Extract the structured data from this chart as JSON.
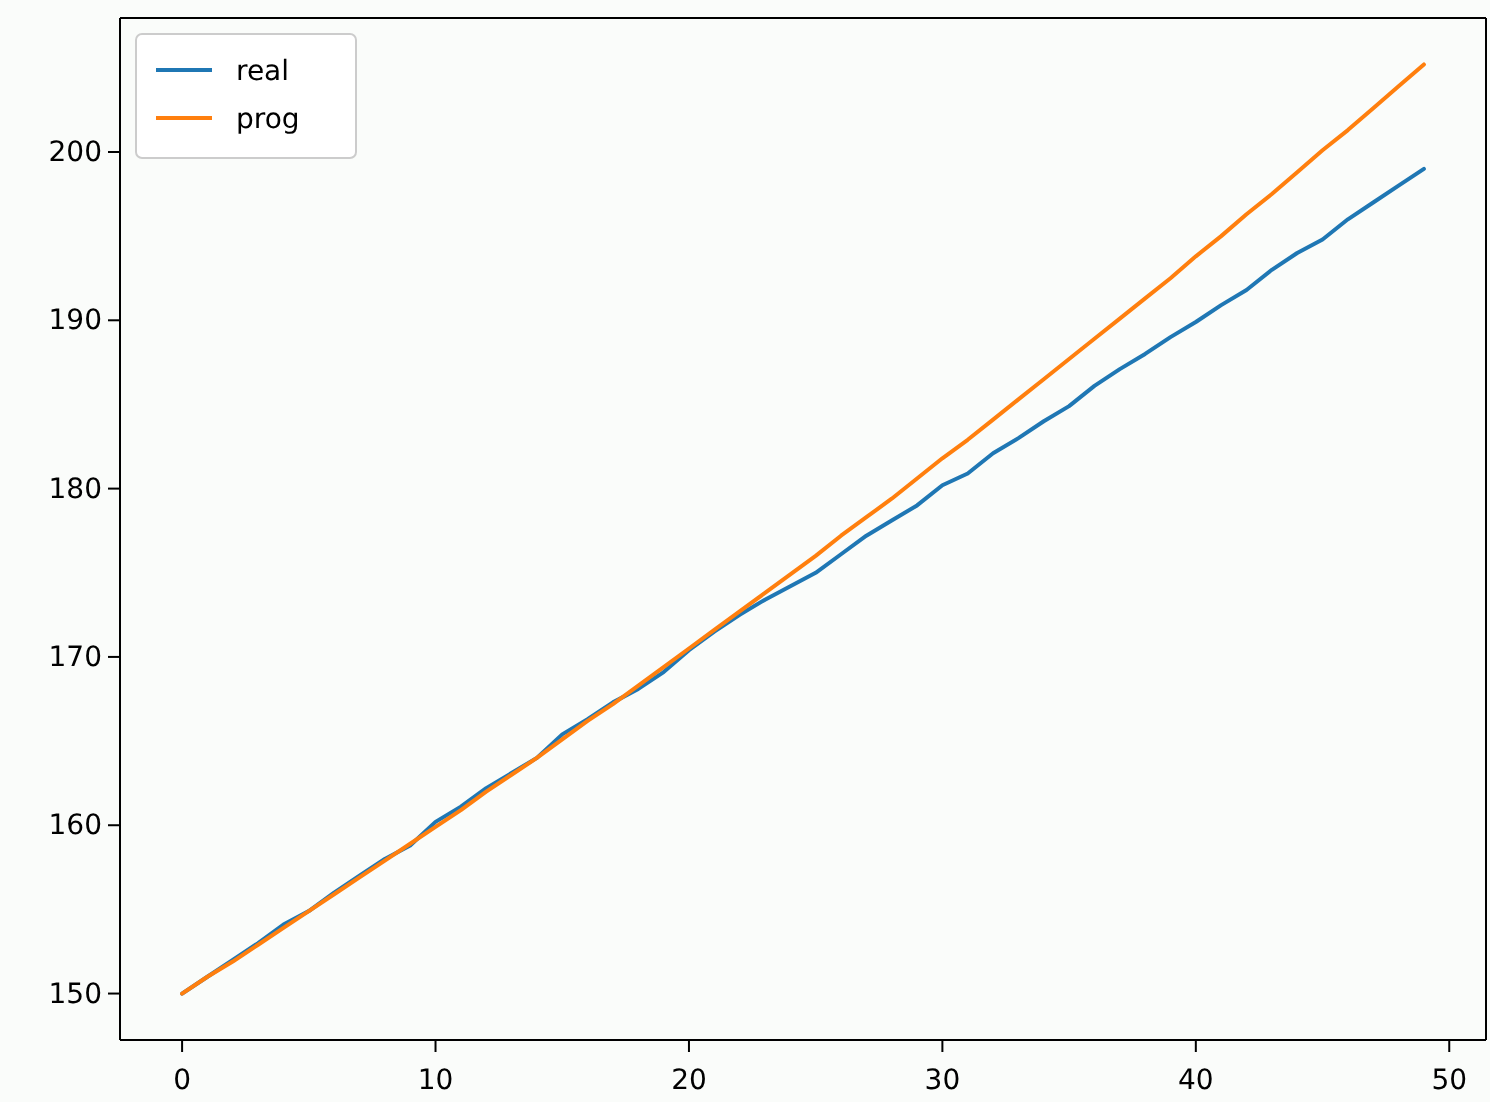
{
  "chart_data": {
    "type": "line",
    "x": [
      0,
      1,
      2,
      3,
      4,
      5,
      6,
      7,
      8,
      9,
      10,
      11,
      12,
      13,
      14,
      15,
      16,
      17,
      18,
      19,
      20,
      21,
      22,
      23,
      24,
      25,
      26,
      27,
      28,
      29,
      30,
      31,
      32,
      33,
      34,
      35,
      36,
      37,
      38,
      39,
      40,
      41,
      42,
      43,
      44,
      45,
      46,
      47,
      48,
      49
    ],
    "series": [
      {
        "name": "real",
        "color": "#1f77b4",
        "values": [
          150,
          151,
          152,
          153,
          154.1,
          154.9,
          156,
          157,
          158,
          158.8,
          160.2,
          161.1,
          162.2,
          163.1,
          164,
          165.4,
          166.3,
          167.3,
          168.1,
          169.1,
          170.4,
          171.5,
          172.5,
          173.4,
          174.2,
          175,
          176.1,
          177.2,
          178.1,
          179,
          180.2,
          180.9,
          182.1,
          183,
          184,
          184.9,
          186.1,
          187.1,
          188,
          189,
          189.9,
          190.9,
          191.8,
          193,
          194,
          194.8,
          196,
          197,
          198,
          199
        ]
      },
      {
        "name": "prog",
        "color": "#ff7f0e",
        "values": [
          150,
          151,
          151.9,
          152.9,
          153.9,
          154.9,
          155.9,
          156.9,
          157.9,
          158.9,
          159.9,
          160.9,
          162,
          163,
          164,
          165.1,
          166.2,
          167.2,
          168.3,
          169.4,
          170.5,
          171.6,
          172.7,
          173.8,
          174.9,
          176,
          177.2,
          178.3,
          179.4,
          180.6,
          181.8,
          182.9,
          184.1,
          185.3,
          186.5,
          187.7,
          188.9,
          190.1,
          191.3,
          192.5,
          193.8,
          195,
          196.3,
          197.5,
          198.8,
          200.1,
          201.3,
          202.6,
          203.9,
          205.2
        ]
      }
    ],
    "xlim": [
      -2.45,
      51.45
    ],
    "ylim": [
      147.24,
      207.96
    ],
    "xticks": [
      0,
      10,
      20,
      30,
      40,
      50
    ],
    "yticks": [
      150,
      160,
      170,
      180,
      190,
      200
    ],
    "grid": false,
    "legend": "top left"
  }
}
